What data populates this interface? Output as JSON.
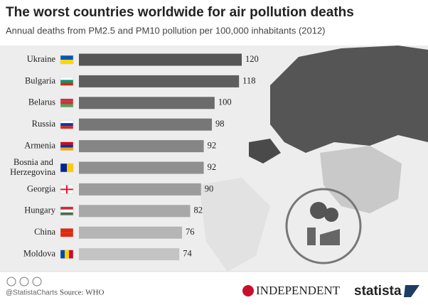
{
  "chart_data": {
    "type": "bar",
    "orientation": "horizontal",
    "title": "The worst countries worldwide for air pollution deaths",
    "subtitle": "Annual deaths from PM2.5 and PM10 pollution per 100,000 inhabitants (2012)",
    "categories": [
      "Ukraine",
      "Bulgaria",
      "Belarus",
      "Russia",
      "Armenia",
      "Bosnia and Herzegovina",
      "Georgia",
      "Hungary",
      "China",
      "Moldova"
    ],
    "values": [
      120,
      118,
      100,
      98,
      92,
      92,
      90,
      82,
      76,
      74
    ],
    "colors": [
      "#555555",
      "#5e5e5e",
      "#6b6b6b",
      "#777777",
      "#858585",
      "#8f8f8f",
      "#9c9c9c",
      "#a8a8a8",
      "#b5b5b5",
      "#c4c4c4"
    ],
    "handle": "@StatistaCharts",
    "source": "Source: WHO",
    "logos": [
      "INDEPENDENT",
      "statista"
    ]
  }
}
